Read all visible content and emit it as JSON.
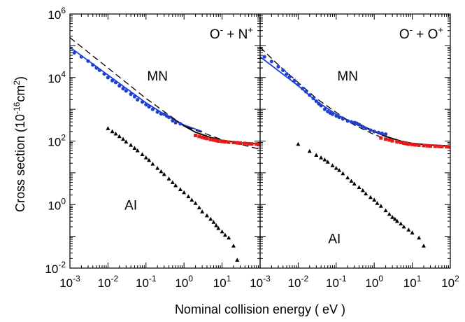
{
  "chart_data": {
    "type": "scatter",
    "xlabel": "Nominal collision energy ( eV )",
    "ylabel": {
      "base": "Cross section (10",
      "exp": "-16",
      "unit": "cm",
      "unit_exp": "2",
      "close": ")"
    },
    "xscale": "log",
    "yscale": "log",
    "y_ticks": [
      {
        "base": "10",
        "exp": "-2",
        "value": 0.01
      },
      {
        "base": "10",
        "exp": "0",
        "value": 1
      },
      {
        "base": "10",
        "exp": "2",
        "value": 100
      },
      {
        "base": "10",
        "exp": "4",
        "value": 10000
      },
      {
        "base": "10",
        "exp": "6",
        "value": 1000000
      }
    ],
    "ylim": [
      0.01,
      1000000
    ],
    "panels": [
      {
        "reaction": {
          "a": "O",
          "a_sup": "-",
          "op": " + ",
          "b": "N",
          "b_sup": "+"
        },
        "labels": [
          {
            "text": "MN",
            "x": 0.2,
            "y": 8000
          },
          {
            "text": "AI",
            "x": 0.04,
            "y": 0.7
          }
        ],
        "xlim": [
          0.001,
          100
        ],
        "x_ticks": [
          {
            "base": "10",
            "exp": "-3",
            "value": 0.001
          },
          {
            "base": "10",
            "exp": "-2",
            "value": 0.01
          },
          {
            "base": "10",
            "exp": "-1",
            "value": 0.1
          },
          {
            "base": "10",
            "exp": "0",
            "value": 1
          },
          {
            "base": "10",
            "exp": "1",
            "value": 10
          }
        ],
        "series": [
          {
            "color": "#1f3fd6",
            "marker": "circle",
            "x": [
              0.0013,
              0.002,
              0.003,
              0.004,
              0.005,
              0.006,
              0.008,
              0.01,
              0.013,
              0.016,
              0.02,
              0.025,
              0.03,
              0.04,
              0.05,
              0.06,
              0.08,
              0.1,
              0.12,
              0.15,
              0.2,
              0.25,
              0.3,
              0.35,
              0.4,
              0.5,
              0.6,
              0.8
            ],
            "y": [
              60000,
              45000,
              33000,
              25000,
              20000,
              17000,
              13000,
              10000,
              8000,
              7000,
              5500,
              4500,
              3800,
              3000,
              2500,
              2000,
              1700,
              1400,
              1200,
              1000,
              820,
              720,
              700,
              620,
              560,
              440,
              380,
              350
            ]
          },
          {
            "color": "#e81818",
            "marker": "square",
            "x": [
              2,
              2.5,
              3,
              3.5,
              4,
              5,
              6,
              7,
              8,
              10,
              12,
              15,
              20,
              25,
              30,
              40,
              50,
              60,
              80,
              100
            ],
            "y": [
              150,
              140,
              132,
              125,
              120,
              112,
              108,
              104,
              100,
              97,
              95,
              92,
              90,
              88,
              86,
              84,
              82,
              81,
              80,
              79
            ]
          },
          {
            "color": "#000000",
            "marker": "triangle",
            "x": [
              0.01,
              0.013,
              0.016,
              0.02,
              0.025,
              0.03,
              0.04,
              0.05,
              0.06,
              0.08,
              0.1,
              0.12,
              0.15,
              0.2,
              0.25,
              0.3,
              0.4,
              0.5,
              0.6,
              0.8,
              1,
              1.3,
              1.6,
              2,
              2.5,
              3,
              4,
              5,
              6,
              7,
              8,
              10,
              12,
              15,
              20,
              25
            ],
            "y": [
              250,
              200,
              170,
              140,
              115,
              95,
              75,
              60,
              50,
              38,
              30,
              25,
              19,
              14,
              11,
              9,
              6.5,
              5,
              4,
              3,
              2.4,
              1.8,
              1.4,
              1.1,
              0.8,
              0.6,
              0.45,
              0.35,
              0.28,
              0.22,
              0.18,
              0.14,
              0.11,
              0.09,
              0.05,
              0.018
            ]
          }
        ],
        "curves": [
          {
            "color": "#1f3fd6",
            "dash": "",
            "x": [
              0.001,
              0.01,
              0.1,
              0.3,
              1,
              3
            ],
            "y": [
              90000,
              12000,
              1600,
              700,
              320,
              200
            ]
          },
          {
            "color": "#000000",
            "dash": "",
            "x": [
              0.5,
              1,
              2,
              5,
              10,
              30,
              100
            ],
            "y": [
              520,
              300,
              190,
              130,
              105,
              88,
              80
            ]
          },
          {
            "color": "#000000",
            "dash": "9,5",
            "x": [
              0.001,
              0.01,
              0.1,
              1,
              10,
              100
            ],
            "y": [
              180000,
              20000,
              2200,
              300,
              110,
              55
            ]
          }
        ]
      },
      {
        "reaction": {
          "a": "O",
          "a_sup": "-",
          "op": " + ",
          "b": "O",
          "b_sup": "+"
        },
        "labels": [
          {
            "text": "MN",
            "x": 0.2,
            "y": 8000
          },
          {
            "text": "AI",
            "x": 0.09,
            "y": 0.06
          }
        ],
        "xlim": [
          0.001,
          100
        ],
        "x_ticks": [
          {
            "base": "10",
            "exp": "-3",
            "value": 0.001
          },
          {
            "base": "10",
            "exp": "-2",
            "value": 0.01
          },
          {
            "base": "10",
            "exp": "-1",
            "value": 0.1
          },
          {
            "base": "10",
            "exp": "0",
            "value": 1
          },
          {
            "base": "10",
            "exp": "1",
            "value": 10
          },
          {
            "base": "10",
            "exp": "2",
            "value": 100
          }
        ],
        "series": [
          {
            "color": "#1f3fd6",
            "marker": "circle",
            "x": [
              0.0013,
              0.002,
              0.003,
              0.004,
              0.005,
              0.006,
              0.008,
              0.01,
              0.013,
              0.016,
              0.02,
              0.025,
              0.03,
              0.035,
              0.04,
              0.05,
              0.06,
              0.07,
              0.08,
              0.1,
              0.12,
              0.15,
              0.2,
              0.25,
              0.3,
              0.35,
              0.4,
              0.5,
              0.6,
              0.8,
              1,
              1.3,
              1.6,
              2
            ],
            "y": [
              45000,
              32000,
              22000,
              17000,
              13000,
              10500,
              8000,
              6000,
              4500,
              3600,
              2800,
              2200,
              1800,
              1500,
              1300,
              1000,
              850,
              760,
              700,
              620,
              560,
              500,
              430,
              400,
              380,
              360,
              330,
              280,
              250,
              220,
              200,
              185,
              175,
              165
            ]
          },
          {
            "color": "#e81818",
            "marker": "square",
            "x": [
              1.5,
              2,
              2.5,
              3,
              4,
              5,
              6,
              7,
              8,
              10,
              12,
              15,
              20,
              25,
              30,
              40,
              50,
              60,
              80,
              100
            ],
            "y": [
              125,
              115,
              108,
              102,
              95,
              90,
              86,
              83,
              80,
              78,
              76,
              74,
              72,
              71,
              70,
              69,
              68,
              67,
              66,
              65
            ]
          },
          {
            "color": "#000000",
            "marker": "triangle",
            "x": [
              0.01,
              0.02,
              0.03,
              0.04,
              0.05,
              0.06,
              0.08,
              0.1,
              0.12,
              0.15,
              0.2,
              0.25,
              0.3,
              0.4,
              0.5,
              0.6,
              0.8,
              1,
              1.2,
              1.5,
              2,
              2.5,
              3,
              3.5,
              4,
              5,
              6,
              8,
              10,
              15,
              20
            ],
            "y": [
              80,
              48,
              36,
              30,
              26,
              22,
              17,
              14,
              12,
              9.5,
              7,
              5.5,
              4.5,
              3.5,
              2.8,
              2.2,
              1.7,
              1.4,
              1.1,
              0.9,
              0.65,
              0.5,
              0.4,
              0.35,
              0.3,
              0.25,
              0.2,
              0.16,
              0.13,
              0.09,
              0.05
            ]
          }
        ],
        "curves": [
          {
            "color": "#1f3fd6",
            "dash": "",
            "x": [
              0.001,
              0.01,
              0.03,
              0.1,
              0.3,
              1,
              2
            ],
            "y": [
              45000,
              5500,
              1800,
              700,
              350,
              200,
              160
            ]
          },
          {
            "color": "#000000",
            "dash": "",
            "x": [
              0.3,
              0.5,
              1,
              2,
              5,
              10,
              30,
              100
            ],
            "y": [
              420,
              300,
              200,
              140,
              100,
              85,
              75,
              70
            ]
          },
          {
            "color": "#000000",
            "dash": "9,5",
            "x": [
              0.001,
              0.003,
              0.01,
              0.03,
              0.1,
              0.3,
              1,
              3,
              10,
              30,
              100
            ],
            "y": [
              90000,
              25000,
              7000,
              2200,
              800,
              320,
              160,
              100,
              80,
              72,
              68
            ]
          }
        ]
      }
    ]
  }
}
